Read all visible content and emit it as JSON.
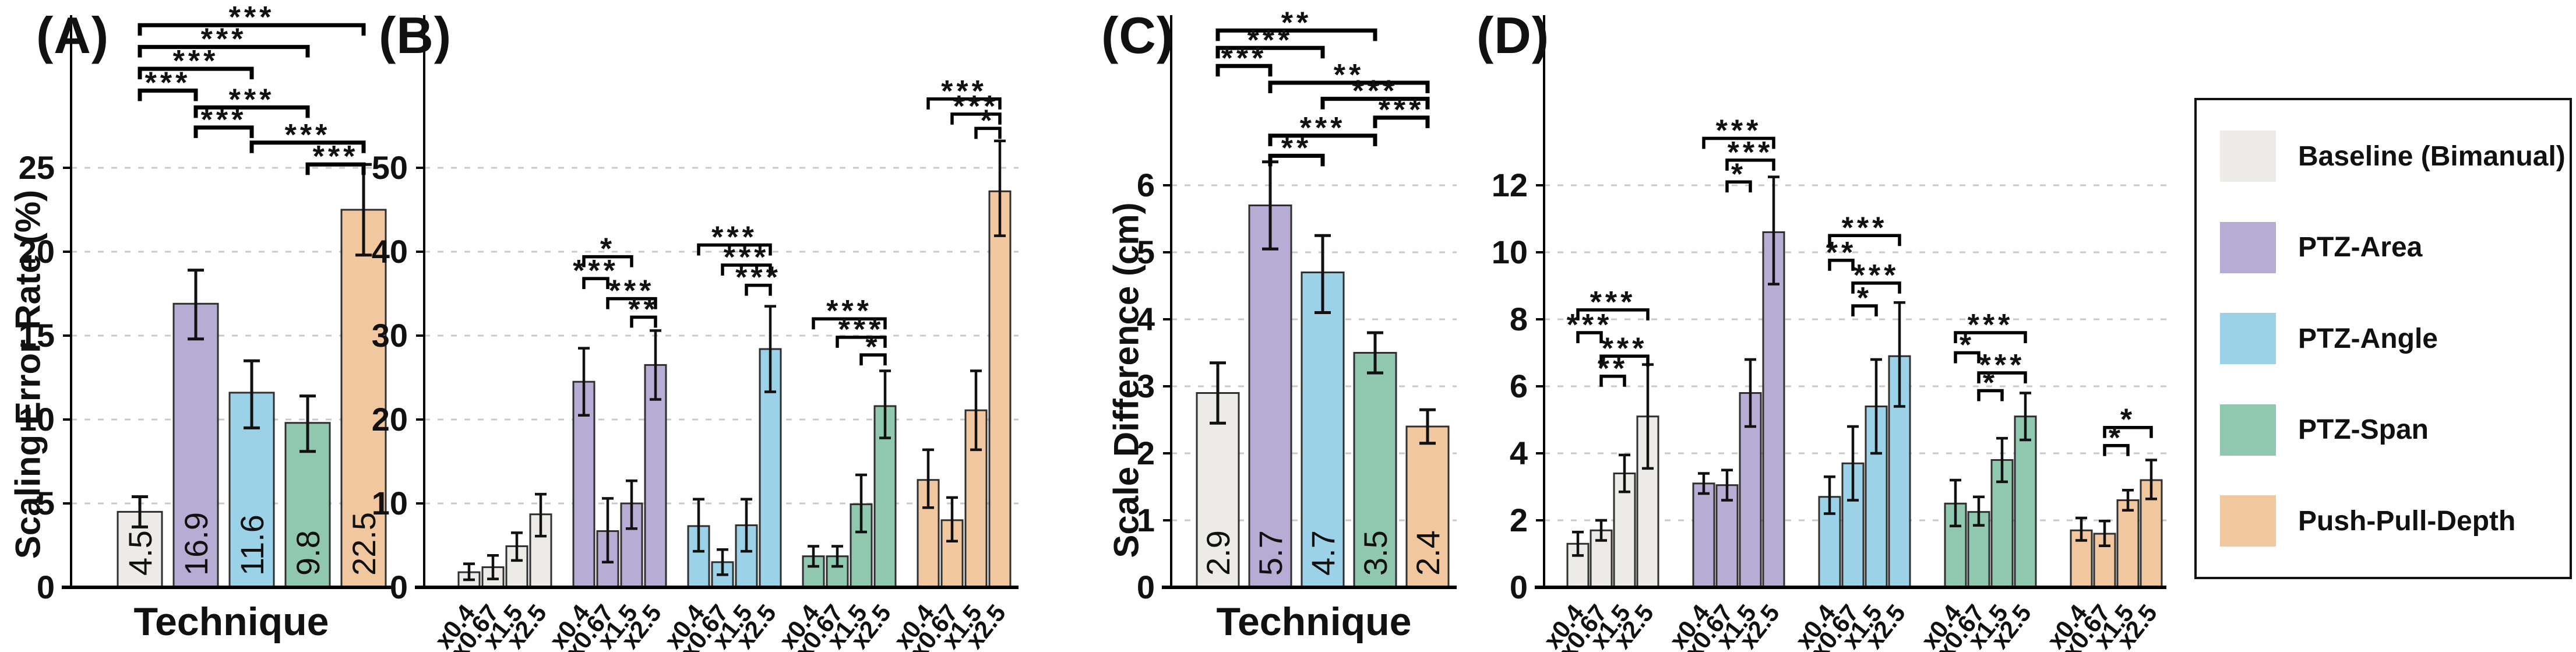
{
  "legend": {
    "items": [
      {
        "label": "Baseline (Bimanual)",
        "color": "#ECEBE8"
      },
      {
        "label": "PTZ-Area",
        "color": "#B7ACD3"
      },
      {
        "label": "PTZ-Angle",
        "color": "#9CD2E8"
      },
      {
        "label": "PTZ-Span",
        "color": "#8FC8AF"
      },
      {
        "label": "Push-Pull-Depth",
        "color": "#F1C79F"
      }
    ],
    "border_color": "#111111"
  },
  "style": {
    "bar_edge_color": "#2F2F2F",
    "grid_color": "#C9C9C9",
    "axis_color": "#000000",
    "background": "#FFFFFF"
  },
  "chart_data": [
    {
      "id": "A",
      "panel_label": "(A)",
      "type": "bar",
      "xlabel": "Technique",
      "ylabel": "Scaling Error Rate (%)",
      "yticks": [
        0,
        5,
        10,
        15,
        20,
        25
      ],
      "ylim": [
        0,
        34
      ],
      "grid": true,
      "categories": [
        "Baseline (Bimanual)",
        "PTZ-Area",
        "PTZ-Angle",
        "PTZ-Span",
        "Push-Pull-Depth"
      ],
      "values": [
        4.5,
        16.9,
        11.6,
        9.8,
        22.5
      ],
      "bar_labels": [
        "4.5",
        "16.9",
        "11.6",
        "9.8",
        "22.5"
      ],
      "err_minus": [
        0.9,
        2.1,
        2.1,
        1.7,
        2.7
      ],
      "err_plus": [
        0.9,
        2.0,
        1.9,
        1.6,
        2.7
      ],
      "significance": [
        {
          "a": 0,
          "b": 4,
          "label": "***",
          "y": 33.5
        },
        {
          "a": 0,
          "b": 3,
          "label": "***",
          "y": 32.2
        },
        {
          "a": 0,
          "b": 2,
          "label": "***",
          "y": 30.9
        },
        {
          "a": 0,
          "b": 1,
          "label": "***",
          "y": 29.6
        },
        {
          "a": 1,
          "b": 3,
          "label": "***",
          "y": 28.6
        },
        {
          "a": 1,
          "b": 2,
          "label": "***",
          "y": 27.4
        },
        {
          "a": 2,
          "b": 4,
          "label": "***",
          "y": 26.5
        },
        {
          "a": 3,
          "b": 4,
          "label": "***",
          "y": 25.2
        }
      ]
    },
    {
      "id": "B",
      "panel_label": "(B)",
      "type": "grouped_bar",
      "xlabel": "",
      "ylabel": "",
      "yticks": [
        0,
        10,
        20,
        30,
        40,
        50
      ],
      "ylim": [
        0,
        68
      ],
      "grid": true,
      "categories": [
        "x0.4",
        "x0.67",
        "x1.5",
        "x2.5"
      ],
      "group_categories": [
        "Baseline (Bimanual)",
        "PTZ-Area",
        "PTZ-Angle",
        "PTZ-Span",
        "Push-Pull-Depth"
      ],
      "series": [
        {
          "name": "Baseline (Bimanual)",
          "values": [
            1.8,
            2.4,
            4.9,
            8.7
          ],
          "err_minus": [
            0.9,
            1.4,
            1.7,
            2.6
          ],
          "err_plus": [
            1.0,
            1.4,
            1.6,
            2.4
          ]
        },
        {
          "name": "PTZ-Area",
          "values": [
            24.5,
            6.7,
            10.0,
            26.5
          ],
          "err_minus": [
            4.0,
            3.7,
            3.0,
            4.1
          ],
          "err_plus": [
            4.0,
            3.9,
            2.7,
            4.1
          ]
        },
        {
          "name": "PTZ-Angle",
          "values": [
            7.3,
            3.0,
            7.4,
            28.4
          ],
          "err_minus": [
            3.0,
            1.5,
            3.1,
            5.1
          ],
          "err_plus": [
            3.2,
            1.5,
            3.1,
            5.1
          ]
        },
        {
          "name": "PTZ-Span",
          "values": [
            3.7,
            3.7,
            9.9,
            21.6
          ],
          "err_minus": [
            1.2,
            1.2,
            3.3,
            3.8
          ],
          "err_plus": [
            1.2,
            1.2,
            3.5,
            4.2
          ]
        },
        {
          "name": "Push-Pull-Depth",
          "values": [
            12.8,
            8.0,
            21.1,
            47.2
          ],
          "err_minus": [
            3.3,
            2.5,
            4.7,
            5.3
          ],
          "err_plus": [
            3.6,
            2.7,
            4.7,
            6.0
          ]
        }
      ],
      "significance": [
        {
          "group": 1,
          "a": 0,
          "b": 2,
          "label": "*",
          "y": 39.4
        },
        {
          "group": 1,
          "a": 0,
          "b": 1,
          "label": "***",
          "y": 36.8
        },
        {
          "group": 1,
          "a": 1,
          "b": 3,
          "label": "***",
          "y": 34.4
        },
        {
          "group": 1,
          "a": 2,
          "b": 3,
          "label": "**",
          "y": 32.2
        },
        {
          "group": 2,
          "a": 0,
          "b": 3,
          "label": "***",
          "y": 40.8
        },
        {
          "group": 2,
          "a": 1,
          "b": 3,
          "label": "***",
          "y": 38.4
        },
        {
          "group": 2,
          "a": 2,
          "b": 3,
          "label": "***",
          "y": 36.0
        },
        {
          "group": 3,
          "a": 0,
          "b": 3,
          "label": "***",
          "y": 32.0
        },
        {
          "group": 3,
          "a": 1,
          "b": 3,
          "label": "***",
          "y": 29.8
        },
        {
          "group": 3,
          "a": 2,
          "b": 3,
          "label": "*",
          "y": 27.7
        },
        {
          "group": 4,
          "a": 0,
          "b": 3,
          "label": "***",
          "y": 58.2
        },
        {
          "group": 4,
          "a": 1,
          "b": 3,
          "label": "***",
          "y": 56.4
        },
        {
          "group": 4,
          "a": 2,
          "b": 3,
          "label": "*",
          "y": 54.7
        }
      ]
    },
    {
      "id": "C",
      "panel_label": "(C)",
      "type": "bar",
      "xlabel": "Technique",
      "ylabel": "Scale Difference (cm)",
      "yticks": [
        0,
        1,
        2,
        3,
        4,
        5,
        6
      ],
      "ylim": [
        0,
        8.5
      ],
      "grid": true,
      "categories": [
        "Baseline (Bimanual)",
        "PTZ-Area",
        "PTZ-Angle",
        "PTZ-Span",
        "Push-Pull-Depth"
      ],
      "values": [
        2.9,
        5.7,
        4.7,
        3.5,
        2.4
      ],
      "bar_labels": [
        "2.9",
        "5.7",
        "4.7",
        "3.5",
        "2.4"
      ],
      "err_minus": [
        0.45,
        0.65,
        0.6,
        0.3,
        0.25
      ],
      "err_plus": [
        0.45,
        0.65,
        0.55,
        0.3,
        0.25
      ],
      "significance": [
        {
          "a": 0,
          "b": 3,
          "label": "**",
          "y": 8.31
        },
        {
          "a": 0,
          "b": 2,
          "label": "***",
          "y": 8.05
        },
        {
          "a": 0,
          "b": 1,
          "label": "***",
          "y": 7.78
        },
        {
          "a": 1,
          "b": 4,
          "label": "**",
          "y": 7.53
        },
        {
          "a": 2,
          "b": 4,
          "label": "***",
          "y": 7.29
        },
        {
          "a": 3,
          "b": 4,
          "label": "***",
          "y": 7.01
        },
        {
          "a": 1,
          "b": 3,
          "label": "***",
          "y": 6.74
        },
        {
          "a": 1,
          "b": 2,
          "label": "**",
          "y": 6.44
        }
      ]
    },
    {
      "id": "D",
      "panel_label": "(D)",
      "type": "grouped_bar",
      "xlabel": "",
      "ylabel": "",
      "yticks": [
        0,
        2,
        4,
        6,
        8,
        10,
        12
      ],
      "ylim": [
        0,
        17
      ],
      "grid": true,
      "categories": [
        "x0.4",
        "x0.67",
        "x1.5",
        "x2.5"
      ],
      "group_categories": [
        "Baseline (Bimanual)",
        "PTZ-Area",
        "PTZ-Angle",
        "PTZ-Span",
        "Push-Pull-Depth"
      ],
      "series": [
        {
          "name": "Baseline (Bimanual)",
          "values": [
            1.3,
            1.7,
            3.4,
            5.1
          ],
          "err_minus": [
            0.35,
            0.3,
            0.55,
            1.55
          ],
          "err_plus": [
            0.35,
            0.3,
            0.55,
            1.55
          ]
        },
        {
          "name": "PTZ-Area",
          "values": [
            3.1,
            3.05,
            5.8,
            10.6
          ],
          "err_minus": [
            0.3,
            0.45,
            1.0,
            1.55
          ],
          "err_plus": [
            0.3,
            0.45,
            1.0,
            1.65
          ]
        },
        {
          "name": "PTZ-Angle",
          "values": [
            2.7,
            3.7,
            5.4,
            6.9
          ],
          "err_minus": [
            0.5,
            1.1,
            1.4,
            1.5
          ],
          "err_plus": [
            0.6,
            1.1,
            1.4,
            1.6
          ]
        },
        {
          "name": "PTZ-Span",
          "values": [
            2.5,
            2.25,
            3.8,
            5.1
          ],
          "err_minus": [
            0.67,
            0.4,
            0.65,
            0.7
          ],
          "err_plus": [
            0.7,
            0.45,
            0.65,
            0.7
          ]
        },
        {
          "name": "Push-Pull-Depth",
          "values": [
            1.7,
            1.6,
            2.6,
            3.2
          ],
          "err_minus": [
            0.3,
            0.36,
            0.3,
            0.56
          ],
          "err_plus": [
            0.37,
            0.38,
            0.3,
            0.6
          ]
        }
      ],
      "significance": [
        {
          "group": 0,
          "a": 0,
          "b": 3,
          "label": "***",
          "y": 8.28
        },
        {
          "group": 0,
          "a": 0,
          "b": 1,
          "label": "***",
          "y": 7.6
        },
        {
          "group": 0,
          "a": 1,
          "b": 3,
          "label": "***",
          "y": 6.9
        },
        {
          "group": 0,
          "a": 1,
          "b": 2,
          "label": "**",
          "y": 6.3
        },
        {
          "group": 1,
          "a": 0,
          "b": 3,
          "label": "***",
          "y": 13.4
        },
        {
          "group": 1,
          "a": 1,
          "b": 3,
          "label": "***",
          "y": 12.75
        },
        {
          "group": 1,
          "a": 1,
          "b": 2,
          "label": "*",
          "y": 12.1
        },
        {
          "group": 2,
          "a": 0,
          "b": 3,
          "label": "***",
          "y": 10.5
        },
        {
          "group": 2,
          "a": 0,
          "b": 1,
          "label": "**",
          "y": 9.76
        },
        {
          "group": 2,
          "a": 1,
          "b": 3,
          "label": "***",
          "y": 9.08
        },
        {
          "group": 2,
          "a": 1,
          "b": 2,
          "label": "*",
          "y": 8.4
        },
        {
          "group": 3,
          "a": 0,
          "b": 3,
          "label": "***",
          "y": 7.6
        },
        {
          "group": 3,
          "a": 0,
          "b": 1,
          "label": "*",
          "y": 7.0
        },
        {
          "group": 3,
          "a": 1,
          "b": 3,
          "label": "***",
          "y": 6.4
        },
        {
          "group": 3,
          "a": 1,
          "b": 2,
          "label": "*",
          "y": 5.87
        },
        {
          "group": 4,
          "a": 1,
          "b": 3,
          "label": "*",
          "y": 4.77
        },
        {
          "group": 4,
          "a": 1,
          "b": 2,
          "label": "*",
          "y": 4.23
        }
      ]
    }
  ]
}
